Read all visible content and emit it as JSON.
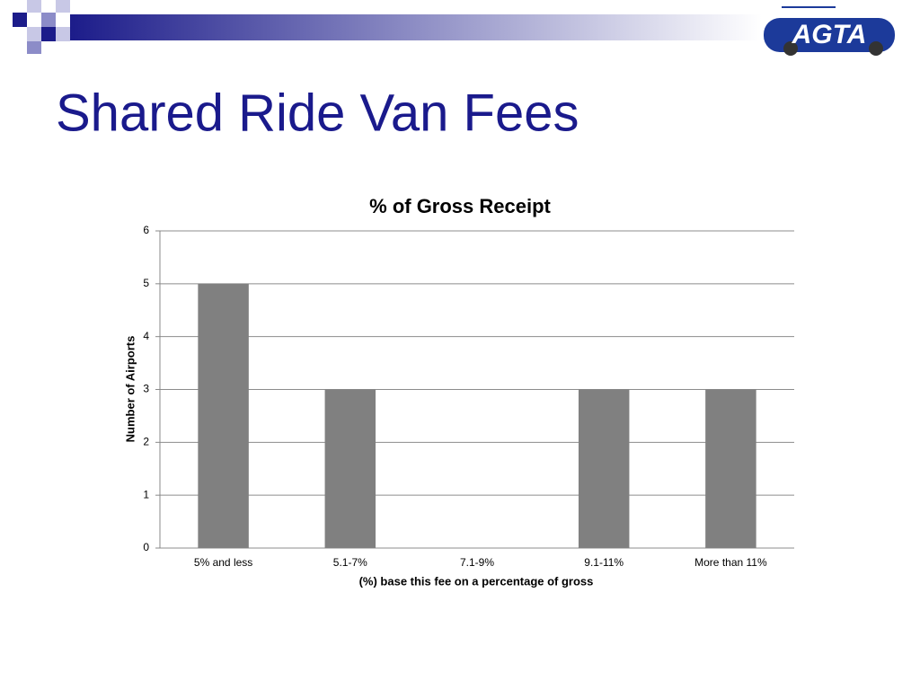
{
  "slide_title": "Shared Ride Van Fees",
  "logo": "AGTA",
  "chart_data": {
    "type": "bar",
    "title": "% of Gross Receipt",
    "x_label": "(%) base this fee on a percentage of gross",
    "y_label": "Number of Airports",
    "categories": [
      "5% and less",
      "5.1-7%",
      "7.1-9%",
      "9.1-11%",
      "More than 11%"
    ],
    "values": [
      5,
      3,
      0,
      3,
      3
    ],
    "color": "#808080",
    "ylim": [
      0,
      6
    ],
    "yticks": [
      0,
      1,
      2,
      3,
      4,
      5,
      6
    ],
    "grid": true
  }
}
